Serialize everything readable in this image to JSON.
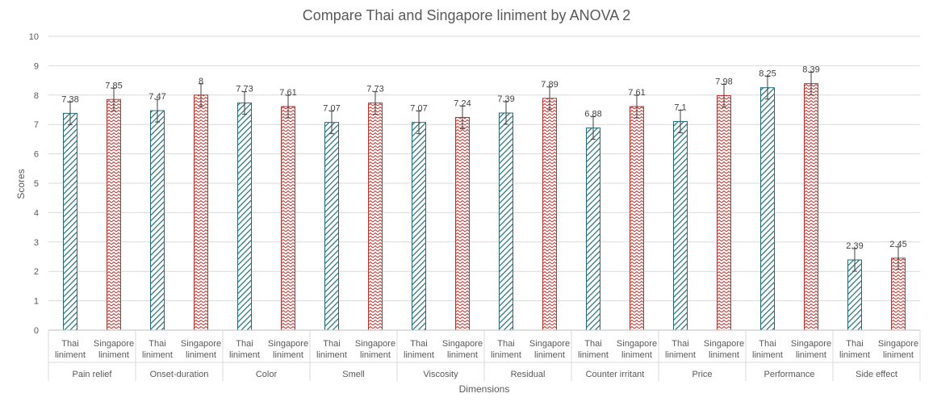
{
  "chart_data": {
    "type": "bar",
    "title": "Compare Thai and Singapore liniment by ANOVA 2",
    "xlabel": "Dimensions",
    "ylabel": "Scores",
    "ylim": [
      0,
      10
    ],
    "yticks": [
      0,
      1,
      2,
      3,
      4,
      5,
      6,
      7,
      8,
      9,
      10
    ],
    "grid": true,
    "legend": "none",
    "categories": [
      "Pain relief",
      "Onset-duration",
      "Color",
      "Smell",
      "Viscosity",
      "Residual",
      "Counter irritant",
      "Price",
      "Performance",
      "Side effect"
    ],
    "series": [
      {
        "label_lines": [
          "Thai",
          "liniment"
        ],
        "color": "#1f6e77",
        "values": [
          7.38,
          7.47,
          7.73,
          7.07,
          7.07,
          7.39,
          6.88,
          7.1,
          8.25,
          2.39
        ],
        "value_labels": [
          "7.38",
          "7.47",
          "7.73",
          "7.07",
          "7.07",
          "7.39",
          "6.88",
          "7.1",
          "8.25",
          "2.39"
        ]
      },
      {
        "label_lines": [
          "Singapore",
          "liniment"
        ],
        "color": "#c0312b",
        "values": [
          7.85,
          8,
          7.61,
          7.73,
          7.24,
          7.89,
          7.61,
          7.98,
          8.39,
          2.45
        ],
        "value_labels": [
          "7.85",
          "8",
          "7.61",
          "7.73",
          "7.24",
          "7.89",
          "7.61",
          "7.98",
          "8.39",
          "2.45"
        ]
      }
    ]
  }
}
